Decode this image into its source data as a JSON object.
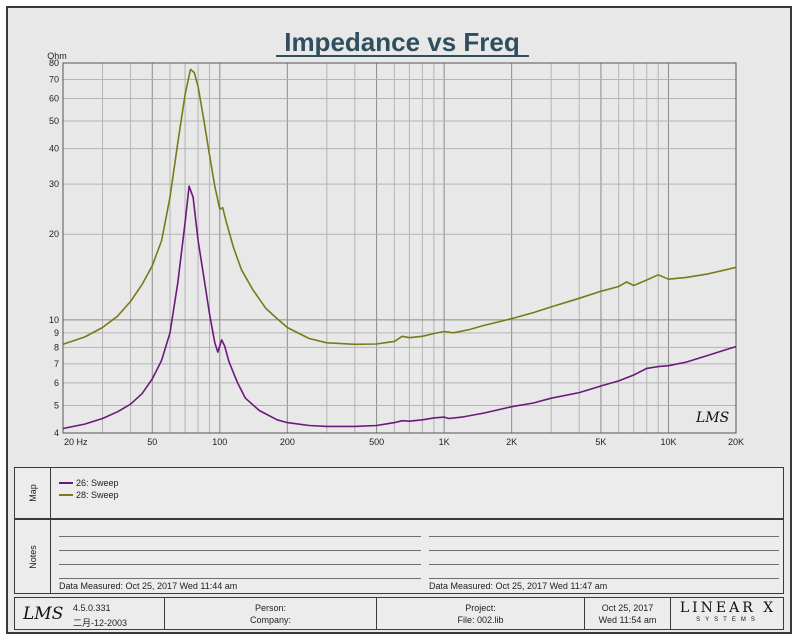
{
  "chart_data": {
    "type": "line",
    "title": "Impedance vs Freq",
    "y_unit": "Ohm",
    "x_scale": "log",
    "y_scale": "log",
    "xlim": [
      20,
      20000
    ],
    "ylim": [
      4,
      80
    ],
    "x_ticks": [
      {
        "v": 20,
        "label": "20  Hz"
      },
      {
        "v": 50,
        "label": "50"
      },
      {
        "v": 100,
        "label": "100"
      },
      {
        "v": 200,
        "label": "200"
      },
      {
        "v": 500,
        "label": "500"
      },
      {
        "v": 1000,
        "label": "1K"
      },
      {
        "v": 2000,
        "label": "2K"
      },
      {
        "v": 5000,
        "label": "5K"
      },
      {
        "v": 10000,
        "label": "10K"
      },
      {
        "v": 20000,
        "label": "20K"
      }
    ],
    "y_ticks": [
      {
        "v": 4,
        "label": "4"
      },
      {
        "v": 5,
        "label": "5"
      },
      {
        "v": 6,
        "label": "6"
      },
      {
        "v": 7,
        "label": "7"
      },
      {
        "v": 8,
        "label": "8"
      },
      {
        "v": 9,
        "label": "9"
      },
      {
        "v": 10,
        "label": "10"
      },
      {
        "v": 20,
        "label": "20"
      },
      {
        "v": 30,
        "label": "30"
      },
      {
        "v": 40,
        "label": "40"
      },
      {
        "v": 50,
        "label": "50"
      },
      {
        "v": 60,
        "label": "60"
      },
      {
        "v": 70,
        "label": "70"
      },
      {
        "v": 80,
        "label": "80"
      }
    ],
    "grid": true,
    "series": [
      {
        "name": "26: Sweep",
        "color": "#6a1b7a",
        "points": [
          [
            20,
            4.15
          ],
          [
            25,
            4.3
          ],
          [
            30,
            4.5
          ],
          [
            35,
            4.75
          ],
          [
            40,
            5.05
          ],
          [
            45,
            5.5
          ],
          [
            50,
            6.2
          ],
          [
            55,
            7.2
          ],
          [
            60,
            9.0
          ],
          [
            65,
            13.5
          ],
          [
            70,
            22
          ],
          [
            73,
            29.5
          ],
          [
            76,
            27
          ],
          [
            80,
            19
          ],
          [
            85,
            14
          ],
          [
            90,
            10.5
          ],
          [
            95,
            8.3
          ],
          [
            98,
            7.7
          ],
          [
            102,
            8.5
          ],
          [
            105,
            8.1
          ],
          [
            110,
            7.1
          ],
          [
            120,
            6.0
          ],
          [
            130,
            5.3
          ],
          [
            150,
            4.8
          ],
          [
            180,
            4.45
          ],
          [
            200,
            4.35
          ],
          [
            250,
            4.25
          ],
          [
            300,
            4.22
          ],
          [
            400,
            4.22
          ],
          [
            500,
            4.25
          ],
          [
            600,
            4.35
          ],
          [
            650,
            4.42
          ],
          [
            700,
            4.4
          ],
          [
            800,
            4.45
          ],
          [
            900,
            4.52
          ],
          [
            1000,
            4.55
          ],
          [
            1050,
            4.5
          ],
          [
            1200,
            4.55
          ],
          [
            1500,
            4.7
          ],
          [
            2000,
            4.95
          ],
          [
            2500,
            5.1
          ],
          [
            3000,
            5.3
          ],
          [
            4000,
            5.55
          ],
          [
            5000,
            5.85
          ],
          [
            6000,
            6.1
          ],
          [
            7000,
            6.4
          ],
          [
            8000,
            6.75
          ],
          [
            9000,
            6.85
          ],
          [
            10000,
            6.9
          ],
          [
            12000,
            7.1
          ],
          [
            15000,
            7.5
          ],
          [
            18000,
            7.85
          ],
          [
            20000,
            8.05
          ]
        ]
      },
      {
        "name": "28: Sweep",
        "color": "#7a7a1a",
        "points": [
          [
            20,
            8.2
          ],
          [
            25,
            8.7
          ],
          [
            30,
            9.4
          ],
          [
            35,
            10.3
          ],
          [
            40,
            11.6
          ],
          [
            45,
            13.3
          ],
          [
            50,
            15.5
          ],
          [
            55,
            19
          ],
          [
            60,
            27
          ],
          [
            65,
            42
          ],
          [
            70,
            62
          ],
          [
            74,
            76
          ],
          [
            77,
            74
          ],
          [
            80,
            66
          ],
          [
            85,
            50
          ],
          [
            90,
            38
          ],
          [
            95,
            29.5
          ],
          [
            100,
            24.5
          ],
          [
            103,
            24.8
          ],
          [
            107,
            22
          ],
          [
            115,
            18
          ],
          [
            125,
            15
          ],
          [
            140,
            12.8
          ],
          [
            160,
            11
          ],
          [
            180,
            10.1
          ],
          [
            200,
            9.4
          ],
          [
            250,
            8.6
          ],
          [
            300,
            8.3
          ],
          [
            400,
            8.2
          ],
          [
            500,
            8.22
          ],
          [
            600,
            8.4
          ],
          [
            650,
            8.75
          ],
          [
            700,
            8.65
          ],
          [
            800,
            8.75
          ],
          [
            900,
            8.95
          ],
          [
            1000,
            9.1
          ],
          [
            1100,
            9.0
          ],
          [
            1300,
            9.25
          ],
          [
            1500,
            9.55
          ],
          [
            2000,
            10.1
          ],
          [
            2500,
            10.6
          ],
          [
            3000,
            11.1
          ],
          [
            4000,
            11.9
          ],
          [
            5000,
            12.6
          ],
          [
            6000,
            13.1
          ],
          [
            6500,
            13.6
          ],
          [
            7000,
            13.2
          ],
          [
            8000,
            13.8
          ],
          [
            9000,
            14.4
          ],
          [
            10000,
            13.9
          ],
          [
            12000,
            14.1
          ],
          [
            15000,
            14.5
          ],
          [
            18000,
            15.0
          ],
          [
            20000,
            15.3
          ]
        ]
      }
    ]
  },
  "watermark_logo": "LMS",
  "legend_panel": {
    "label": "Map",
    "entries": [
      {
        "text": "26: Sweep",
        "color": "#6a1b7a"
      },
      {
        "text": "28: Sweep",
        "color": "#7a7a1a"
      }
    ]
  },
  "notes_panel": {
    "label": "Notes",
    "left_measured": "Data Measured: Oct 25, 2017  Wed 11:44 am",
    "right_measured": "Data Measured: Oct 25, 2017  Wed 11:47 am"
  },
  "footer": {
    "logo": "LMS",
    "version": "4.5.0.331",
    "version_date": "二月-12-2003",
    "person_label": "Person:",
    "company_label": "Company:",
    "project_label": "Project:",
    "file_label": "File: 002.lib",
    "date": "Oct 25, 2017",
    "time": "Wed 11:54 am",
    "brand": "LINEAR X",
    "brand_sub": "SYSTEMS"
  }
}
